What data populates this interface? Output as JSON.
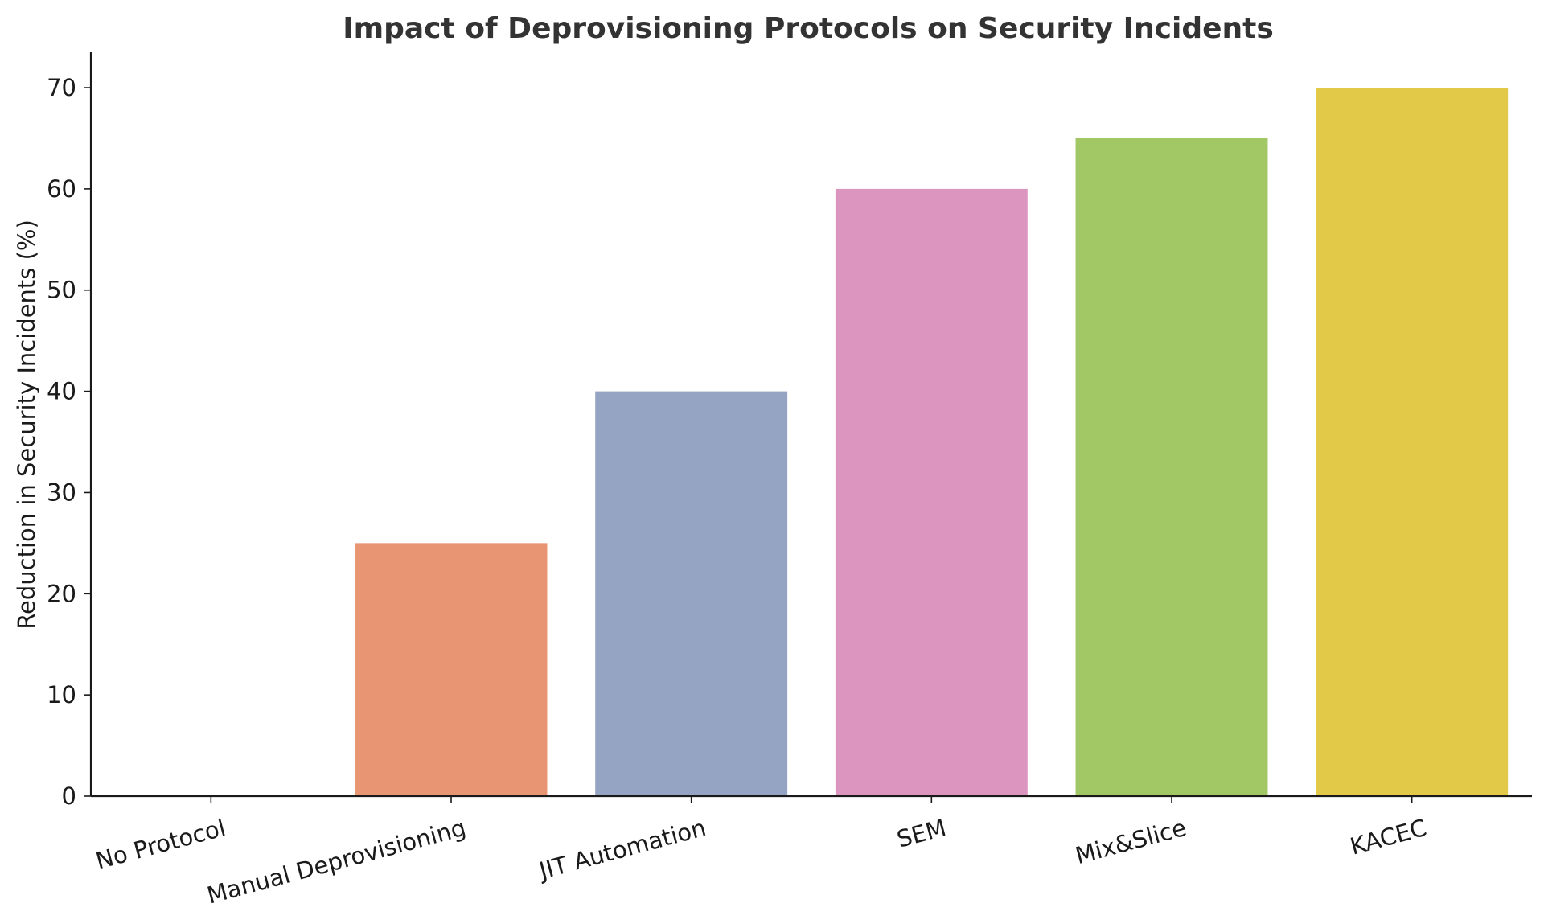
{
  "chart_data": {
    "type": "bar",
    "title": "Impact of Deprovisioning Protocols on Security Incidents",
    "xlabel": "",
    "ylabel": "Reduction in Security Incidents (%)",
    "categories": [
      "No Protocol",
      "Manual Deprovisioning",
      "JIT Automation",
      "SEM",
      "Mix&Slice",
      "KACEC"
    ],
    "values": [
      0,
      25,
      40,
      60,
      65,
      70
    ],
    "colors": [
      "#66c2a5",
      "#e89573",
      "#95a4c2",
      "#db95be",
      "#a2c865",
      "#e3c948"
    ],
    "ylim": [
      0,
      73.5
    ],
    "yticks": [
      0,
      10,
      20,
      30,
      40,
      50,
      60,
      70
    ],
    "grid": false,
    "legend": "none"
  }
}
